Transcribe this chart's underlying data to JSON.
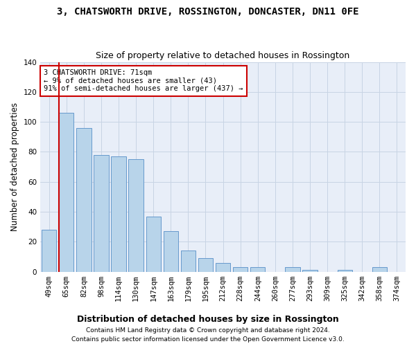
{
  "title": "3, CHATSWORTH DRIVE, ROSSINGTON, DONCASTER, DN11 0FE",
  "subtitle": "Size of property relative to detached houses in Rossington",
  "xlabel_bottom": "Distribution of detached houses by size in Rossington",
  "ylabel": "Number of detached properties",
  "categories": [
    "49sqm",
    "65sqm",
    "82sqm",
    "98sqm",
    "114sqm",
    "130sqm",
    "147sqm",
    "163sqm",
    "179sqm",
    "195sqm",
    "212sqm",
    "228sqm",
    "244sqm",
    "260sqm",
    "277sqm",
    "293sqm",
    "309sqm",
    "325sqm",
    "342sqm",
    "358sqm",
    "374sqm"
  ],
  "values": [
    28,
    106,
    96,
    78,
    77,
    75,
    37,
    27,
    14,
    9,
    6,
    3,
    3,
    0,
    3,
    1,
    0,
    1,
    0,
    3,
    0
  ],
  "bar_color": "#b8d4ea",
  "bar_edge_color": "#6699cc",
  "annotation_text": "3 CHATSWORTH DRIVE: 71sqm\n← 9% of detached houses are smaller (43)\n91% of semi-detached houses are larger (437) →",
  "annotation_box_color": "#ffffff",
  "annotation_border_color": "#cc0000",
  "red_line_color": "#cc0000",
  "grid_color": "#c8d4e4",
  "background_color": "#e8eef8",
  "ylim": [
    0,
    140
  ],
  "yticks": [
    0,
    20,
    40,
    60,
    80,
    100,
    120,
    140
  ],
  "footer1": "Contains HM Land Registry data © Crown copyright and database right 2024.",
  "footer2": "Contains public sector information licensed under the Open Government Licence v3.0.",
  "title_fontsize": 10,
  "subtitle_fontsize": 9,
  "tick_fontsize": 7.5,
  "ylabel_fontsize": 8.5,
  "annot_fontsize": 7.5,
  "footer_fontsize": 6.5,
  "xlabel_bottom_fontsize": 9
}
